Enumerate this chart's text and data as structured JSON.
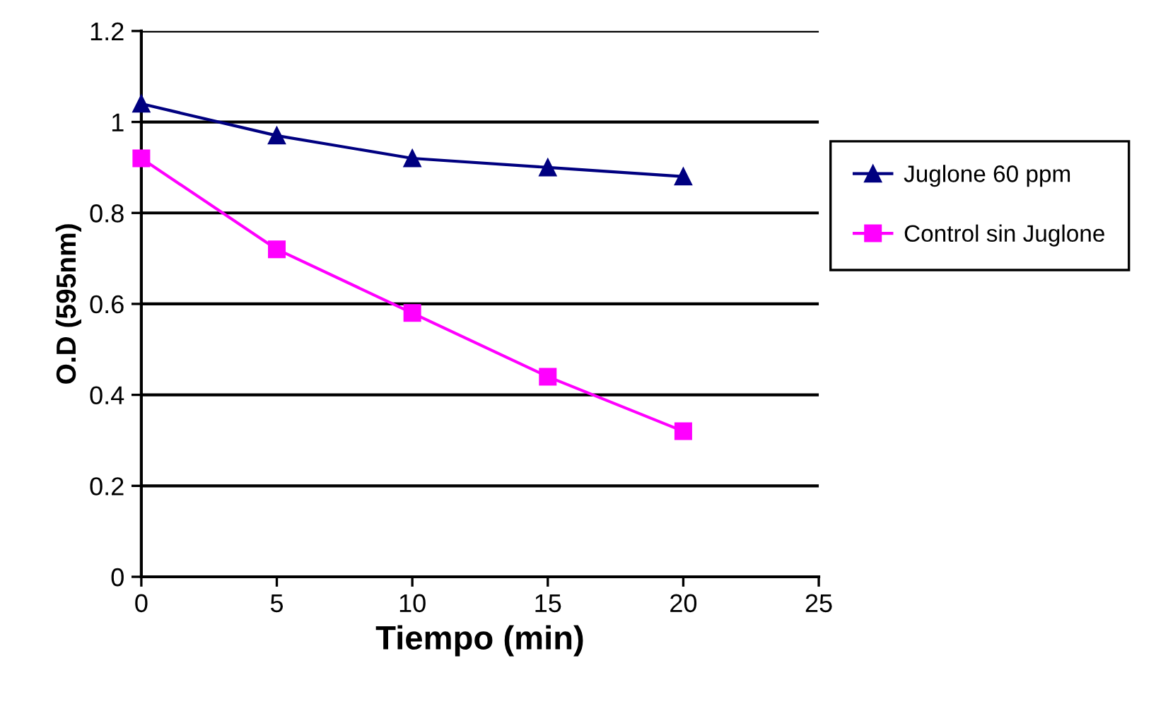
{
  "chart_data": {
    "type": "line",
    "xlabel": "Tiempo (min)",
    "ylabel": "O.D (595nm)",
    "x": [
      0,
      5,
      10,
      15,
      20
    ],
    "series": [
      {
        "name": "Juglone 60 ppm",
        "color": "#000080",
        "marker": "triangle",
        "values": [
          1.04,
          0.97,
          0.92,
          0.9,
          0.88
        ]
      },
      {
        "name": "Control sin Juglone",
        "color": "#ff00ff",
        "marker": "square",
        "values": [
          0.92,
          0.72,
          0.58,
          0.44,
          0.32
        ]
      }
    ],
    "xlim": [
      0,
      25
    ],
    "xticks": [
      0,
      5,
      10,
      15,
      20,
      25
    ],
    "ylim": [
      0,
      1.2
    ],
    "yticks": [
      0,
      0.2,
      0.4,
      0.6,
      0.8,
      1,
      1.2
    ],
    "grid": "y",
    "legend": "right",
    "line_style": "solid"
  }
}
